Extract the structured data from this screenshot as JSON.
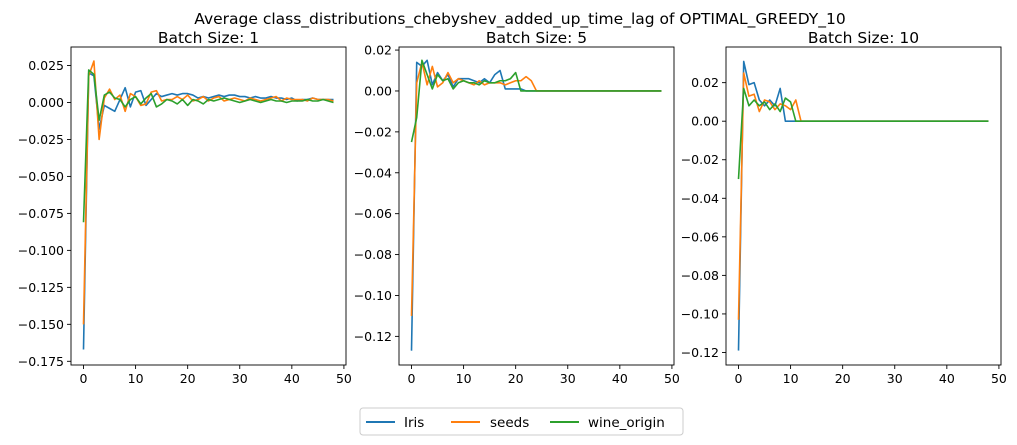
{
  "figure": {
    "suptitle": "Average class_distributions_chebyshev_added_up_time_lag of OPTIMAL_GREEDY_10",
    "legend": {
      "placement": "bottom-center",
      "entries": [
        {
          "name": "Iris",
          "color": "#1f77b4"
        },
        {
          "name": "seeds",
          "color": "#ff7f0e"
        },
        {
          "name": "wine_origin",
          "color": "#2ca02c"
        }
      ]
    }
  },
  "chart_data": [
    {
      "type": "line",
      "title": "Batch Size: 1",
      "xlabel": "",
      "ylabel": "",
      "xlim": [
        -2.4,
        50.4
      ],
      "ylim": [
        -0.1775,
        0.0375
      ],
      "xticks": [
        0,
        10,
        20,
        30,
        40,
        50
      ],
      "xtick_labels": [
        "0",
        "10",
        "20",
        "30",
        "40",
        "50"
      ],
      "yticks": [
        -0.175,
        -0.15,
        -0.125,
        -0.1,
        -0.075,
        -0.05,
        -0.025,
        0.0,
        0.025
      ],
      "ytick_labels": [
        "−0.175",
        "−0.150",
        "−0.125",
        "−0.100",
        "−0.075",
        "−0.050",
        "−0.025",
        "0.000",
        "0.025"
      ],
      "grid": false,
      "series": [
        {
          "name": "Iris",
          "color": "#1f77b4",
          "x": [
            0,
            1,
            2,
            3,
            4,
            5,
            6,
            7,
            8,
            9,
            10,
            11,
            12,
            13,
            14,
            15,
            16,
            17,
            18,
            19,
            20,
            21,
            22,
            23,
            24,
            25,
            26,
            27,
            28,
            29,
            30,
            31,
            32,
            33,
            34,
            35,
            36,
            37,
            38,
            39,
            40,
            41,
            42,
            43,
            44,
            45,
            46,
            47,
            48
          ],
          "y": [
            -0.167,
            0.02,
            0.018,
            -0.018,
            -0.002,
            -0.004,
            -0.006,
            0.002,
            0.01,
            -0.003,
            0.007,
            0.008,
            -0.002,
            0.002,
            0.006,
            0.004,
            0.005,
            0.006,
            0.005,
            0.006,
            0.006,
            0.005,
            0.003,
            0.004,
            0.003,
            0.004,
            0.005,
            0.004,
            0.005,
            0.005,
            0.004,
            0.004,
            0.003,
            0.004,
            0.003,
            0.003,
            0.004,
            0.003,
            0.003,
            0.002,
            0.003,
            0.001,
            0.002,
            0.002,
            0.003,
            0.002,
            0.002,
            0.002,
            0.002
          ]
        },
        {
          "name": "seeds",
          "color": "#ff7f0e",
          "x": [
            0,
            1,
            2,
            3,
            4,
            5,
            6,
            7,
            8,
            9,
            10,
            11,
            12,
            13,
            14,
            15,
            16,
            17,
            18,
            19,
            20,
            21,
            22,
            23,
            24,
            25,
            26,
            27,
            28,
            29,
            30,
            31,
            32,
            33,
            34,
            35,
            36,
            37,
            38,
            39,
            40,
            41,
            42,
            43,
            44,
            45,
            46,
            47,
            48
          ],
          "y": [
            -0.15,
            0.018,
            0.028,
            -0.025,
            0.003,
            0.009,
            0.002,
            0.005,
            -0.006,
            0.006,
            0.004,
            -0.002,
            -0.001,
            0.007,
            0.008,
            0.001,
            0.002,
            0.002,
            0.004,
            0.002,
            0.005,
            0.001,
            0.002,
            0.004,
            0.001,
            0.003,
            0.004,
            0.001,
            0.002,
            0.003,
            0.002,
            0.001,
            0.003,
            0.002,
            0.001,
            0.002,
            0.003,
            0.004,
            0.001,
            0.003,
            0.002,
            0.002,
            0.002,
            0.001,
            0.003,
            0.002,
            0.002,
            0.002,
            0.001
          ]
        },
        {
          "name": "wine_origin",
          "color": "#2ca02c",
          "x": [
            0,
            1,
            2,
            3,
            4,
            5,
            6,
            7,
            8,
            9,
            10,
            11,
            12,
            13,
            14,
            15,
            16,
            17,
            18,
            19,
            20,
            21,
            22,
            23,
            24,
            25,
            26,
            27,
            28,
            29,
            30,
            31,
            32,
            33,
            34,
            35,
            36,
            37,
            38,
            39,
            40,
            41,
            42,
            43,
            44,
            45,
            46,
            47,
            48
          ],
          "y": [
            -0.081,
            0.022,
            0.019,
            -0.012,
            0.005,
            0.007,
            0.003,
            0.002,
            -0.003,
            0.002,
            0.004,
            -0.001,
            0.003,
            0.006,
            -0.003,
            -0.001,
            0.002,
            0.001,
            -0.001,
            0.002,
            -0.002,
            0.002,
            0.001,
            -0.001,
            0.002,
            0.001,
            0.002,
            0.003,
            0.002,
            0.001,
            0.0,
            0.001,
            0.002,
            0.001,
            0.0,
            0.001,
            0.002,
            0.001,
            0.001,
            0.0,
            0.001,
            0.001,
            0.001,
            0.002,
            0.001,
            0.001,
            0.002,
            0.001,
            0.0
          ]
        }
      ]
    },
    {
      "type": "line",
      "title": "Batch Size: 5",
      "xlabel": "",
      "ylabel": "",
      "xlim": [
        -2.4,
        50.4
      ],
      "ylim": [
        -0.134,
        0.0215
      ],
      "xticks": [
        0,
        10,
        20,
        30,
        40,
        50
      ],
      "xtick_labels": [
        "0",
        "10",
        "20",
        "30",
        "40",
        "50"
      ],
      "yticks": [
        -0.12,
        -0.1,
        -0.08,
        -0.06,
        -0.04,
        -0.02,
        0.0,
        0.02
      ],
      "ytick_labels": [
        "−0.12",
        "−0.10",
        "−0.08",
        "−0.06",
        "−0.04",
        "−0.02",
        "0.00",
        "0.02"
      ],
      "grid": false,
      "series": [
        {
          "name": "Iris",
          "color": "#1f77b4",
          "x": [
            0,
            1,
            2,
            3,
            4,
            5,
            6,
            7,
            8,
            9,
            10,
            11,
            12,
            13,
            14,
            15,
            16,
            17,
            18,
            19,
            20,
            21,
            22,
            23,
            24,
            25,
            26,
            27,
            28,
            29,
            30,
            31,
            32,
            33,
            34,
            35,
            36,
            37,
            38,
            39,
            40,
            41,
            42,
            43,
            44,
            45,
            46,
            47,
            48
          ],
          "y": [
            -0.127,
            0.014,
            0.012,
            0.015,
            0.003,
            0.009,
            0.005,
            0.008,
            0.002,
            0.006,
            0.006,
            0.006,
            0.005,
            0.004,
            0.006,
            0.004,
            0.008,
            0.01,
            0.001,
            0.001,
            0.001,
            0.001,
            0.0,
            0.0,
            0.0,
            0.0,
            0.0,
            0.0,
            0.0,
            0.0,
            0.0,
            0.0,
            0.0,
            0.0,
            0.0,
            0.0,
            0.0,
            0.0,
            0.0,
            0.0,
            0.0,
            0.0,
            0.0,
            0.0,
            0.0,
            0.0,
            0.0,
            0.0,
            0.0
          ]
        },
        {
          "name": "seeds",
          "color": "#ff7f0e",
          "x": [
            0,
            1,
            2,
            3,
            4,
            5,
            6,
            7,
            8,
            9,
            10,
            11,
            12,
            13,
            14,
            15,
            16,
            17,
            18,
            19,
            20,
            21,
            22,
            23,
            24,
            25,
            26,
            27,
            28,
            29,
            30,
            31,
            32,
            33,
            34,
            35,
            36,
            37,
            38,
            39,
            40,
            41,
            42,
            43,
            44,
            45,
            46,
            47,
            48
          ],
          "y": [
            -0.11,
            0.004,
            0.014,
            0.003,
            0.012,
            0.002,
            0.004,
            0.009,
            0.004,
            0.006,
            0.005,
            0.004,
            0.003,
            0.005,
            0.003,
            0.004,
            0.004,
            0.004,
            0.003,
            0.004,
            0.005,
            0.005,
            0.007,
            0.005,
            0.0,
            0.0,
            0.0,
            0.0,
            0.0,
            0.0,
            0.0,
            0.0,
            0.0,
            0.0,
            0.0,
            0.0,
            0.0,
            0.0,
            0.0,
            0.0,
            0.0,
            0.0,
            0.0,
            0.0,
            0.0,
            0.0,
            0.0,
            0.0,
            0.0
          ]
        },
        {
          "name": "wine_origin",
          "color": "#2ca02c",
          "x": [
            0,
            1,
            2,
            3,
            4,
            5,
            6,
            7,
            8,
            9,
            10,
            11,
            12,
            13,
            14,
            15,
            16,
            17,
            18,
            19,
            20,
            21,
            22,
            23,
            24,
            25,
            26,
            27,
            28,
            29,
            30,
            31,
            32,
            33,
            34,
            35,
            36,
            37,
            38,
            39,
            40,
            41,
            42,
            43,
            44,
            45,
            46,
            47,
            48
          ],
          "y": [
            -0.025,
            -0.013,
            0.015,
            0.008,
            0.001,
            0.008,
            0.005,
            0.006,
            0.001,
            0.004,
            0.005,
            0.004,
            0.004,
            0.003,
            0.005,
            0.004,
            0.004,
            0.005,
            0.005,
            0.006,
            0.009,
            0.0,
            0.0,
            0.0,
            0.0,
            0.0,
            0.0,
            0.0,
            0.0,
            0.0,
            0.0,
            0.0,
            0.0,
            0.0,
            0.0,
            0.0,
            0.0,
            0.0,
            0.0,
            0.0,
            0.0,
            0.0,
            0.0,
            0.0,
            0.0,
            0.0,
            0.0,
            0.0,
            0.0
          ]
        }
      ]
    },
    {
      "type": "line",
      "title": "Batch Size: 10",
      "xlabel": "",
      "ylabel": "",
      "xlim": [
        -2.4,
        50.4
      ],
      "ylim": [
        -0.1265,
        0.0385
      ],
      "xticks": [
        0,
        10,
        20,
        30,
        40,
        50
      ],
      "xtick_labels": [
        "0",
        "10",
        "20",
        "30",
        "40",
        "50"
      ],
      "yticks": [
        -0.12,
        -0.1,
        -0.08,
        -0.06,
        -0.04,
        -0.02,
        0.0,
        0.02
      ],
      "ytick_labels": [
        "−0.12",
        "−0.10",
        "−0.08",
        "−0.06",
        "−0.04",
        "−0.02",
        "0.00",
        "0.02"
      ],
      "grid": false,
      "series": [
        {
          "name": "Iris",
          "color": "#1f77b4",
          "x": [
            0,
            1,
            2,
            3,
            4,
            5,
            6,
            7,
            8,
            9,
            10,
            11,
            12,
            13,
            14,
            15,
            16,
            17,
            18,
            19,
            20,
            21,
            22,
            23,
            24,
            25,
            26,
            27,
            28,
            29,
            30,
            31,
            32,
            33,
            34,
            35,
            36,
            37,
            38,
            39,
            40,
            41,
            42,
            43,
            44,
            45,
            46,
            47,
            48
          ],
          "y": [
            -0.119,
            0.031,
            0.019,
            0.02,
            0.011,
            0.008,
            0.011,
            0.008,
            0.017,
            0.0,
            0.0,
            0.0,
            0.0,
            0.0,
            0.0,
            0.0,
            0.0,
            0.0,
            0.0,
            0.0,
            0.0,
            0.0,
            0.0,
            0.0,
            0.0,
            0.0,
            0.0,
            0.0,
            0.0,
            0.0,
            0.0,
            0.0,
            0.0,
            0.0,
            0.0,
            0.0,
            0.0,
            0.0,
            0.0,
            0.0,
            0.0,
            0.0,
            0.0,
            0.0,
            0.0,
            0.0,
            0.0,
            0.0,
            0.0
          ]
        },
        {
          "name": "seeds",
          "color": "#ff7f0e",
          "x": [
            0,
            1,
            2,
            3,
            4,
            5,
            6,
            7,
            8,
            9,
            10,
            11,
            12,
            13,
            14,
            15,
            16,
            17,
            18,
            19,
            20,
            21,
            22,
            23,
            24,
            25,
            26,
            27,
            28,
            29,
            30,
            31,
            32,
            33,
            34,
            35,
            36,
            37,
            38,
            39,
            40,
            41,
            42,
            43,
            44,
            45,
            46,
            47,
            48
          ],
          "y": [
            -0.103,
            0.025,
            0.013,
            0.014,
            0.005,
            0.011,
            0.01,
            0.006,
            0.009,
            0.008,
            0.006,
            0.011,
            0.0,
            0.0,
            0.0,
            0.0,
            0.0,
            0.0,
            0.0,
            0.0,
            0.0,
            0.0,
            0.0,
            0.0,
            0.0,
            0.0,
            0.0,
            0.0,
            0.0,
            0.0,
            0.0,
            0.0,
            0.0,
            0.0,
            0.0,
            0.0,
            0.0,
            0.0,
            0.0,
            0.0,
            0.0,
            0.0,
            0.0,
            0.0,
            0.0,
            0.0,
            0.0,
            0.0,
            0.0
          ]
        },
        {
          "name": "wine_origin",
          "color": "#2ca02c",
          "x": [
            0,
            1,
            2,
            3,
            4,
            5,
            6,
            7,
            8,
            9,
            10,
            11,
            12,
            13,
            14,
            15,
            16,
            17,
            18,
            19,
            20,
            21,
            22,
            23,
            24,
            25,
            26,
            27,
            28,
            29,
            30,
            31,
            32,
            33,
            34,
            35,
            36,
            37,
            38,
            39,
            40,
            41,
            42,
            43,
            44,
            45,
            46,
            47,
            48
          ],
          "y": [
            -0.03,
            0.017,
            0.008,
            0.011,
            0.008,
            0.01,
            0.006,
            0.009,
            0.005,
            0.012,
            0.01,
            0.0,
            0.0,
            0.0,
            0.0,
            0.0,
            0.0,
            0.0,
            0.0,
            0.0,
            0.0,
            0.0,
            0.0,
            0.0,
            0.0,
            0.0,
            0.0,
            0.0,
            0.0,
            0.0,
            0.0,
            0.0,
            0.0,
            0.0,
            0.0,
            0.0,
            0.0,
            0.0,
            0.0,
            0.0,
            0.0,
            0.0,
            0.0,
            0.0,
            0.0,
            0.0,
            0.0,
            0.0,
            0.0
          ]
        }
      ]
    }
  ]
}
